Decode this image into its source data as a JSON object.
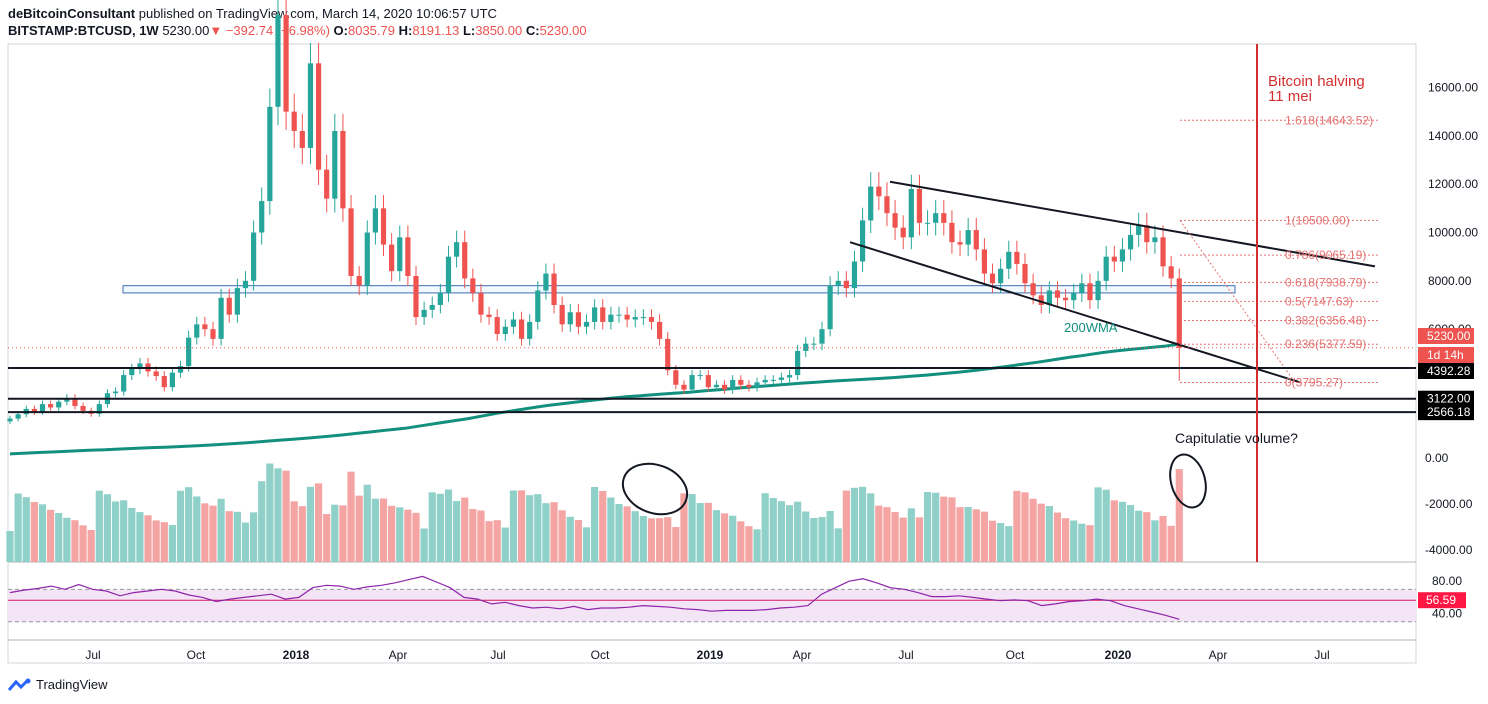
{
  "header": {
    "publisher": "deBitcoinConsultant",
    "published_line": "published on TradingView.com, March 14, 2020 10:06:57 UTC",
    "symbol": "BITSTAMP:BTCUSD, 1W",
    "last": "5230.00",
    "change": "−392.74 (−6.98%)",
    "o_label": "O:",
    "o": "8035.79",
    "h_label": "H:",
    "h": "8191.13",
    "l_label": "L:",
    "l": "3850.00",
    "c_label": "C:",
    "c": "5230.00"
  },
  "branding": {
    "name": "TradingView",
    "icon": "tradingview-logo-icon"
  },
  "colors": {
    "up": "#26a69a",
    "down": "#ef5350",
    "vol_up": "#8fd1c8",
    "vol_down": "#f4a4a2",
    "wma": "#138f7e",
    "rsi": "#8e24aa",
    "rsi_band": "#f3e5f5",
    "fib": "#e57373",
    "halving": "#d32f2f"
  },
  "chart_data": {
    "type": "candlestick",
    "title": "BITSTAMP:BTCUSD, 1W",
    "price_axis": {
      "ticks": [
        "16000.00",
        "14000.00",
        "12000.00",
        "10000.00",
        "8000.00",
        "6000.00"
      ],
      "ylim": [
        1000,
        17800
      ]
    },
    "time_axis": {
      "ticks": [
        "Jul",
        "Oct",
        "2018",
        "Apr",
        "Jul",
        "Oct",
        "2019",
        "Apr",
        "Jul",
        "Oct",
        "2020",
        "Apr",
        "Jul"
      ],
      "bold": [
        "2018",
        "2019",
        "2020"
      ]
    },
    "price_tags": [
      {
        "label": "5230.00",
        "value": 5230,
        "style": "red"
      },
      {
        "label": "1d 14h",
        "value": 4700,
        "style": "red"
      },
      {
        "label": "4392.28",
        "value": 4392.28,
        "style": "black"
      },
      {
        "label": "3122.00",
        "value": 3122,
        "style": "black"
      },
      {
        "label": "2566.18",
        "value": 2566.18,
        "style": "black"
      }
    ],
    "horizontal_levels": [
      4392.28,
      3122,
      2566.18
    ],
    "resistance_zone": [
      7500,
      7800
    ],
    "fib_levels": [
      {
        "label": "1.618(14643.52)",
        "value": 14643.52
      },
      {
        "label": "1(10500.00)",
        "value": 10500
      },
      {
        "label": "0.786(9065.19)",
        "value": 9065.19
      },
      {
        "label": "0.618(7938.79)",
        "value": 7938.79
      },
      {
        "label": "0.5(7147.63)",
        "value": 7147.63
      },
      {
        "label": "0.382(6356.48)",
        "value": 6356.48
      },
      {
        "label": "0.236(5377.59)",
        "value": 5377.59
      },
      {
        "label": "0(3795.27)",
        "value": 3795.27
      }
    ],
    "annotations": [
      {
        "text": "Bitcoin halving",
        "date": "2020-05-11"
      },
      {
        "text": "11 mei"
      },
      {
        "text": "200WMA"
      },
      {
        "text": "Capitulatie volume?"
      }
    ],
    "volume_axis": {
      "ticks": [
        "0.00",
        "-2000.00",
        "-4000.00"
      ]
    },
    "rsi": {
      "ticks": [
        "80.00",
        "40.00"
      ],
      "value_label": "56.59",
      "value": 56.59,
      "band": [
        30,
        70
      ]
    },
    "closes": [
      2300,
      2480,
      2700,
      2580,
      2900,
      2760,
      3000,
      3150,
      2820,
      2620,
      2500,
      2900,
      3350,
      3420,
      4100,
      4350,
      4580,
      4250,
      4060,
      3600,
      4200,
      4470,
      5650,
      6200,
      6000,
      5600,
      7300,
      6600,
      7700,
      8000,
      10000,
      11300,
      15200,
      19000,
      15000,
      14200,
      13500,
      17000,
      12600,
      11400,
      14200,
      11000,
      8200,
      7800,
      10000,
      11000,
      9500,
      8400,
      9800,
      8200,
      6500,
      6800,
      7000,
      7500,
      9000,
      9600,
      8100,
      7500,
      6600,
      6500,
      5800,
      6100,
      6400,
      5600,
      6300,
      7600,
      8300,
      7000,
      6200,
      6700,
      6100,
      6300,
      6900,
      6300,
      6600,
      6600,
      6400,
      6500,
      6500,
      6300,
      5600,
      4300,
      3700,
      3500,
      4100,
      4100,
      3600,
      3700,
      3500,
      3900,
      3700,
      3600,
      3800,
      3900,
      3900,
      4000,
      4100,
      5100,
      5400,
      5400,
      6000,
      7800,
      8000,
      7700,
      8800,
      10500,
      11900,
      11500,
      10800,
      10200,
      9800,
      11800,
      10400,
      10400,
      10800,
      10400,
      9600,
      9500,
      10100,
      9300,
      8300,
      7900,
      8500,
      9200,
      8700,
      7900,
      7400,
      7000,
      7600,
      7300,
      7200,
      7500,
      7900,
      7200,
      8000,
      9000,
      8800,
      9300,
      9900,
      10300,
      9600,
      9800,
      8600,
      8100,
      5230
    ],
    "wma": [
      840,
      870,
      900,
      930,
      960,
      990,
      1010,
      1040,
      1070,
      1100,
      1120,
      1150,
      1180,
      1220,
      1260,
      1300,
      1350,
      1400,
      1450,
      1500,
      1560,
      1620,
      1690,
      1760,
      1830,
      1900,
      2000,
      2100,
      2200,
      2300,
      2420,
      2540,
      2640,
      2740,
      2840,
      2920,
      3000,
      3070,
      3140,
      3200,
      3250,
      3300,
      3350,
      3390,
      3450,
      3500,
      3560,
      3610,
      3660,
      3710,
      3760,
      3800,
      3850,
      3890,
      3920,
      3960,
      4000,
      4050,
      4100,
      4160,
      4220,
      4290,
      4370,
      4450,
      4540,
      4630,
      4730,
      4830,
      4920,
      5020,
      5100,
      5170,
      5230,
      5290,
      5377
    ],
    "rsi_values": [
      66,
      69,
      71,
      74,
      70,
      76,
      70,
      68,
      62,
      66,
      68,
      70,
      68,
      63,
      60,
      55,
      58,
      60,
      62,
      64,
      58,
      60,
      72,
      75,
      74,
      70,
      73,
      75,
      78,
      82,
      86,
      79,
      72,
      60,
      58,
      52,
      54,
      50,
      47,
      48,
      46,
      49,
      45,
      47,
      47,
      48,
      50,
      49,
      48,
      46,
      45,
      43,
      44,
      44,
      44,
      45,
      47,
      48,
      50,
      64,
      72,
      80,
      83,
      78,
      72,
      70,
      66,
      61,
      61,
      62,
      60,
      58,
      56,
      57,
      56,
      50,
      52,
      55,
      56,
      58,
      56,
      50,
      46,
      42,
      38,
      33
    ]
  }
}
